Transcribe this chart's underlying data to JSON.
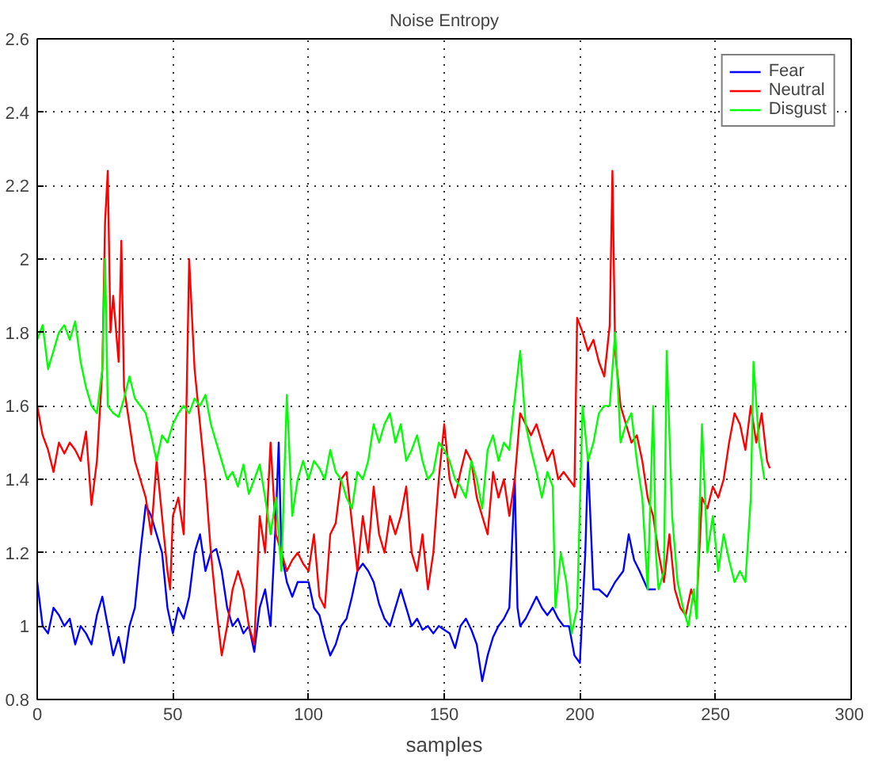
{
  "chart_data": {
    "type": "line",
    "title": "Noise Entropy",
    "xlabel": "samples",
    "xlim": [
      0,
      300
    ],
    "ylim": [
      0.8,
      2.6
    ],
    "xticks": [
      0,
      50,
      100,
      150,
      200,
      250,
      300
    ],
    "yticks": [
      0.8,
      1,
      1.2,
      1.4,
      1.6,
      1.8,
      2,
      2.2,
      2.4,
      2.6
    ],
    "grid": true,
    "legend": "top right",
    "line_style": "solid",
    "series": [
      {
        "name": "Fear",
        "color": "#0000ff",
        "x": [
          0,
          2,
          4,
          6,
          8,
          10,
          12,
          14,
          16,
          18,
          20,
          22,
          24,
          26,
          28,
          30,
          32,
          34,
          36,
          38,
          40,
          42,
          44,
          46,
          48,
          50,
          52,
          54,
          56,
          58,
          60,
          62,
          64,
          66,
          68,
          70,
          72,
          74,
          76,
          78,
          80,
          82,
          84,
          86,
          88,
          89,
          90,
          92,
          94,
          96,
          98,
          100,
          102,
          104,
          106,
          108,
          110,
          112,
          114,
          116,
          118,
          120,
          122,
          124,
          126,
          128,
          130,
          132,
          134,
          136,
          138,
          140,
          142,
          144,
          146,
          148,
          150,
          152,
          154,
          156,
          158,
          160,
          162,
          164,
          166,
          168,
          170,
          172,
          174,
          176,
          177,
          178,
          180,
          182,
          184,
          186,
          188,
          190,
          192,
          194,
          196,
          198,
          200,
          202,
          203,
          205,
          207,
          210,
          213,
          216,
          218,
          220,
          222,
          225,
          228
        ],
        "values": [
          1.12,
          1.0,
          0.98,
          1.05,
          1.03,
          1.0,
          1.02,
          0.95,
          1.0,
          0.98,
          0.95,
          1.03,
          1.08,
          1.0,
          0.92,
          0.97,
          0.9,
          1.0,
          1.05,
          1.2,
          1.33,
          1.3,
          1.25,
          1.2,
          1.05,
          0.98,
          1.05,
          1.02,
          1.08,
          1.2,
          1.25,
          1.15,
          1.2,
          1.21,
          1.15,
          1.05,
          1.0,
          1.02,
          0.98,
          1.0,
          0.93,
          1.05,
          1.1,
          1.0,
          1.3,
          1.5,
          1.2,
          1.12,
          1.08,
          1.12,
          1.12,
          1.12,
          1.05,
          1.03,
          0.97,
          0.92,
          0.95,
          1.0,
          1.02,
          1.08,
          1.15,
          1.17,
          1.15,
          1.12,
          1.06,
          1.02,
          1.0,
          1.05,
          1.1,
          1.05,
          1.0,
          1.02,
          0.99,
          1.0,
          0.98,
          1.0,
          0.99,
          0.98,
          0.94,
          1.0,
          1.02,
          0.99,
          0.95,
          0.85,
          0.92,
          0.97,
          1.0,
          1.02,
          1.05,
          1.4,
          1.05,
          1.0,
          1.02,
          1.05,
          1.08,
          1.05,
          1.03,
          1.05,
          1.02,
          1.0,
          1.0,
          0.92,
          0.9,
          1.2,
          1.45,
          1.1,
          1.1,
          1.08,
          1.12,
          1.15,
          1.25,
          1.18,
          1.15,
          1.1,
          1.1
        ]
      },
      {
        "name": "Neutral",
        "color": "#ff0000",
        "x": [
          0,
          2,
          4,
          6,
          8,
          10,
          12,
          14,
          16,
          18,
          20,
          22,
          24,
          25,
          26,
          27,
          28,
          30,
          31,
          32,
          34,
          36,
          38,
          40,
          42,
          44,
          46,
          48,
          49,
          50,
          52,
          54,
          55,
          56,
          58,
          60,
          62,
          64,
          66,
          68,
          70,
          72,
          74,
          76,
          78,
          80,
          82,
          84,
          86,
          88,
          90,
          92,
          94,
          96,
          98,
          100,
          102,
          104,
          106,
          108,
          110,
          112,
          114,
          116,
          118,
          120,
          122,
          124,
          126,
          128,
          130,
          132,
          134,
          136,
          138,
          140,
          142,
          144,
          146,
          148,
          150,
          152,
          154,
          156,
          158,
          160,
          162,
          164,
          166,
          168,
          170,
          172,
          174,
          176,
          178,
          180,
          182,
          184,
          186,
          188,
          190,
          192,
          194,
          196,
          198,
          199,
          201,
          203,
          205,
          207,
          209,
          211,
          212,
          213,
          215,
          217,
          219,
          221,
          223,
          225,
          227,
          229,
          231,
          233,
          235,
          237,
          239,
          241,
          243,
          245,
          247,
          249,
          251,
          253,
          255,
          257,
          259,
          261,
          263,
          265,
          267,
          269,
          270
        ],
        "values": [
          1.6,
          1.52,
          1.48,
          1.42,
          1.5,
          1.47,
          1.5,
          1.48,
          1.45,
          1.53,
          1.33,
          1.45,
          1.7,
          2.1,
          2.24,
          1.8,
          1.9,
          1.72,
          2.05,
          1.65,
          1.55,
          1.45,
          1.4,
          1.35,
          1.25,
          1.45,
          1.3,
          1.15,
          1.1,
          1.3,
          1.35,
          1.25,
          1.6,
          2.0,
          1.7,
          1.55,
          1.4,
          1.2,
          1.05,
          0.92,
          1.0,
          1.1,
          1.15,
          1.1,
          1.0,
          0.95,
          1.3,
          1.2,
          1.5,
          1.25,
          1.2,
          1.15,
          1.18,
          1.2,
          1.17,
          1.15,
          1.25,
          1.08,
          1.05,
          1.25,
          1.28,
          1.4,
          1.42,
          1.28,
          1.15,
          1.3,
          1.2,
          1.38,
          1.25,
          1.2,
          1.3,
          1.25,
          1.3,
          1.38,
          1.2,
          1.15,
          1.25,
          1.1,
          1.2,
          1.4,
          1.55,
          1.4,
          1.35,
          1.42,
          1.48,
          1.45,
          1.35,
          1.3,
          1.25,
          1.42,
          1.35,
          1.4,
          1.3,
          1.4,
          1.58,
          1.55,
          1.52,
          1.55,
          1.5,
          1.45,
          1.48,
          1.4,
          1.42,
          1.4,
          1.38,
          1.84,
          1.8,
          1.75,
          1.78,
          1.72,
          1.68,
          1.82,
          2.24,
          1.75,
          1.6,
          1.55,
          1.5,
          1.52,
          1.45,
          1.35,
          1.3,
          1.2,
          1.12,
          1.25,
          1.1,
          1.05,
          1.03,
          1.1,
          1.05,
          1.35,
          1.32,
          1.38,
          1.35,
          1.4,
          1.5,
          1.58,
          1.55,
          1.48,
          1.6,
          1.5,
          1.58,
          1.45,
          1.43
        ]
      },
      {
        "name": "Disgust",
        "color": "#00ff00",
        "x": [
          0,
          2,
          4,
          6,
          8,
          10,
          12,
          14,
          16,
          18,
          20,
          22,
          24,
          25,
          26,
          28,
          30,
          32,
          34,
          36,
          38,
          40,
          42,
          44,
          46,
          48,
          50,
          52,
          54,
          56,
          58,
          60,
          62,
          64,
          66,
          68,
          70,
          72,
          74,
          76,
          78,
          80,
          82,
          84,
          86,
          88,
          90,
          92,
          94,
          96,
          98,
          100,
          102,
          104,
          106,
          108,
          110,
          112,
          114,
          116,
          118,
          120,
          122,
          124,
          126,
          128,
          130,
          132,
          134,
          136,
          138,
          140,
          142,
          144,
          146,
          148,
          150,
          152,
          154,
          156,
          158,
          160,
          162,
          164,
          166,
          168,
          170,
          172,
          174,
          176,
          178,
          180,
          182,
          184,
          186,
          188,
          190,
          191,
          193,
          195,
          197,
          199,
          201,
          203,
          205,
          207,
          209,
          211,
          213,
          215,
          217,
          219,
          221,
          223,
          225,
          227,
          228,
          229,
          231,
          232,
          234,
          236,
          238,
          240,
          242,
          243,
          245,
          247,
          249,
          251,
          253,
          255,
          257,
          259,
          261,
          263,
          264,
          266,
          268
        ],
        "values": [
          1.78,
          1.82,
          1.7,
          1.75,
          1.8,
          1.82,
          1.78,
          1.83,
          1.72,
          1.65,
          1.6,
          1.58,
          1.7,
          2.0,
          1.6,
          1.58,
          1.57,
          1.62,
          1.68,
          1.62,
          1.6,
          1.58,
          1.52,
          1.45,
          1.52,
          1.5,
          1.55,
          1.58,
          1.6,
          1.58,
          1.62,
          1.6,
          1.63,
          1.55,
          1.5,
          1.45,
          1.4,
          1.42,
          1.38,
          1.44,
          1.36,
          1.4,
          1.44,
          1.35,
          1.25,
          1.35,
          1.15,
          1.63,
          1.3,
          1.4,
          1.45,
          1.4,
          1.45,
          1.43,
          1.4,
          1.48,
          1.42,
          1.4,
          1.35,
          1.32,
          1.42,
          1.4,
          1.45,
          1.55,
          1.5,
          1.55,
          1.58,
          1.5,
          1.55,
          1.45,
          1.48,
          1.52,
          1.45,
          1.4,
          1.42,
          1.5,
          1.48,
          1.45,
          1.4,
          1.38,
          1.35,
          1.45,
          1.4,
          1.32,
          1.48,
          1.52,
          1.45,
          1.5,
          1.48,
          1.62,
          1.75,
          1.55,
          1.48,
          1.42,
          1.35,
          1.42,
          1.38,
          1.05,
          1.2,
          1.12,
          0.98,
          1.05,
          1.6,
          1.45,
          1.5,
          1.58,
          1.6,
          1.6,
          1.8,
          1.5,
          1.55,
          1.58,
          1.45,
          1.35,
          1.1,
          1.6,
          1.2,
          1.1,
          1.15,
          1.75,
          1.3,
          1.12,
          1.05,
          1.0,
          1.1,
          1.02,
          1.55,
          1.2,
          1.3,
          1.15,
          1.25,
          1.18,
          1.12,
          1.15,
          1.12,
          1.35,
          1.72,
          1.5,
          1.4
        ]
      }
    ]
  }
}
